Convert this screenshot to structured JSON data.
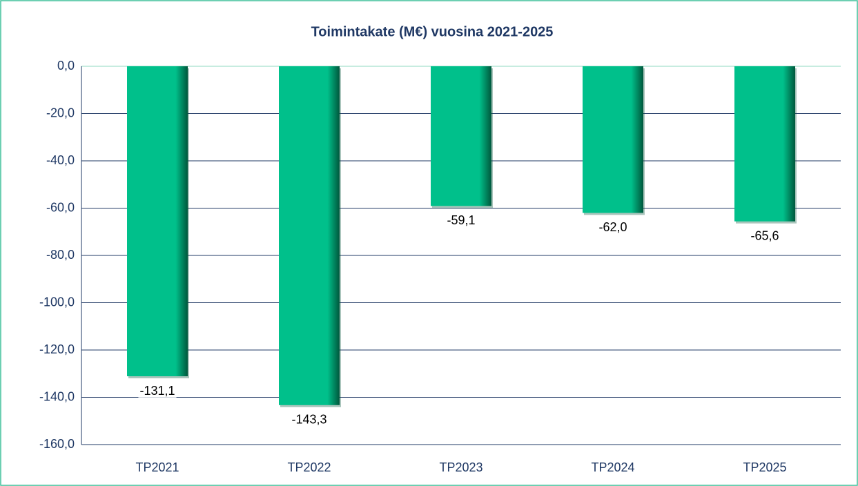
{
  "chart_data": {
    "type": "bar",
    "title": "Toimintakate (M€) vuosina 2021-2025",
    "categories": [
      "TP2021",
      "TP2022",
      "TP2023",
      "TP2024",
      "TP2025"
    ],
    "values": [
      -131.1,
      -143.3,
      -59.1,
      -62.0,
      -65.6
    ],
    "value_labels": [
      "-131,1",
      "-143,3",
      "-59,1",
      "-62,0",
      "-65,6"
    ],
    "color": "#00c08b",
    "ylim": [
      -160,
      0
    ],
    "yticks": [
      {
        "value": 0,
        "label": "0,0"
      },
      {
        "value": -20,
        "label": "-20,0"
      },
      {
        "value": -40,
        "label": "-40,0"
      },
      {
        "value": -60,
        "label": "-60,0"
      },
      {
        "value": -80,
        "label": "-80,0"
      },
      {
        "value": -100,
        "label": "-100,0"
      },
      {
        "value": -120,
        "label": "-120,0"
      },
      {
        "value": -140,
        "label": "-140,0"
      },
      {
        "value": -160,
        "label": "-160,0"
      }
    ],
    "grid": true
  }
}
